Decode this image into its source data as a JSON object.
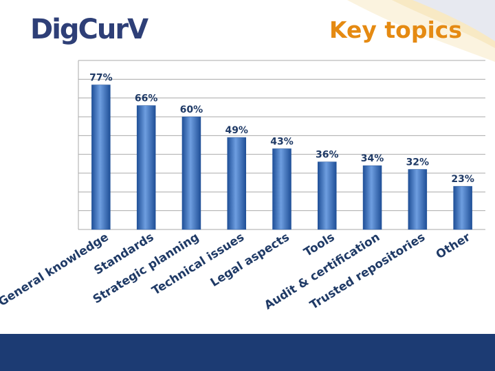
{
  "brand": {
    "logo_text": "DigCurV"
  },
  "slide": {
    "title": "Key topics"
  },
  "colors": {
    "bar": "#3f76c1",
    "bar_light": "#6e9ee0",
    "bar_dark": "#1f4f97",
    "title": "#e58a12",
    "logo": "#2e3f77",
    "footer": "#1c3b73",
    "gridline": "#a9a9a9",
    "label": "#1f3a66"
  },
  "chart_data": {
    "type": "bar",
    "title": "",
    "xlabel": "",
    "ylabel": "",
    "categories": [
      "General knowledge",
      "Standards",
      "Strategic planning",
      "Technical issues",
      "Legal aspects",
      "Tools",
      "Audit & certification",
      "Trusted repositories",
      "Other"
    ],
    "values": [
      77,
      66,
      60,
      49,
      43,
      36,
      34,
      32,
      23
    ],
    "data_labels": [
      "77%",
      "66%",
      "60%",
      "49%",
      "43%",
      "36%",
      "34%",
      "32%",
      "23%"
    ],
    "ylim": [
      0,
      90
    ],
    "grid": true,
    "legend": "none"
  }
}
